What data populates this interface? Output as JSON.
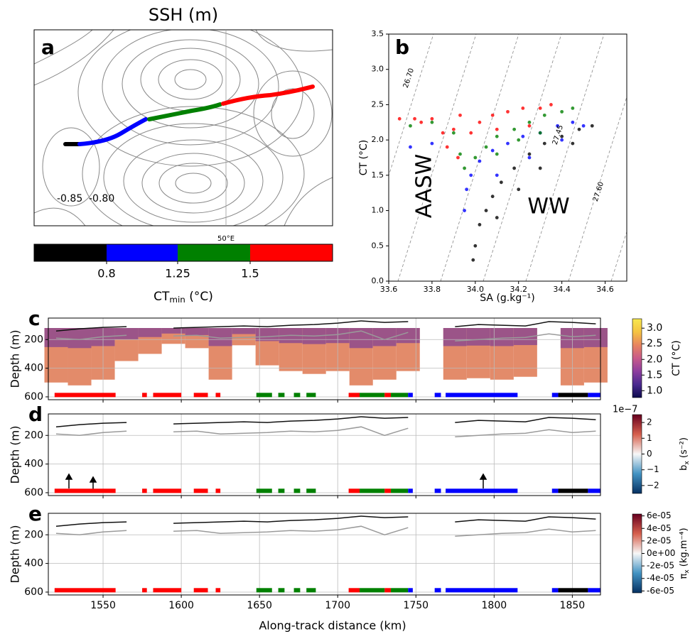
{
  "chart_data": [
    {
      "type": "map",
      "panel_label": "a",
      "title": "SSH (m)",
      "contour_labels": [
        "-0.85",
        "-0.80"
      ],
      "lon_label": "50°E"
    },
    {
      "type": "colorbar",
      "colors": [
        "#000000",
        "#0000ff",
        "#008000",
        "#ff0000"
      ],
      "ticks": [
        0.8,
        1.25,
        1.5
      ],
      "label_main": "CT",
      "label_sub": "min",
      "label_unit": " (°C)"
    },
    {
      "type": "scatter",
      "panel_label": "b",
      "xlabel": "SA (g.kg⁻¹)",
      "ylabel": "CT (°C)",
      "xlim": [
        33.6,
        34.7
      ],
      "ylim": [
        0,
        3.5
      ],
      "xticks": [
        33.6,
        33.8,
        {
          "value": 34,
          "label": "34.0"
        },
        34.2,
        34.4,
        34.6
      ],
      "yticks": [
        {
          "value": 0,
          "label": "0.0"
        },
        0.5,
        {
          "value": 1,
          "label": "1.0"
        },
        1.5,
        {
          "value": 2,
          "label": "2.0"
        },
        2.5,
        {
          "value": 3,
          "label": "3.0"
        },
        3.5
      ],
      "annotations": [
        "AASW",
        "WW"
      ],
      "isopycnal_labels": [
        "26.70",
        "27.45",
        "27.60"
      ],
      "series": [
        {
          "color": "#000000",
          "x": [
            33.99,
            34.0,
            34.02,
            34.05,
            34.08,
            34.12,
            34.18,
            34.25,
            34.32,
            34.4,
            34.48,
            34.54,
            34.1,
            34.2,
            34.3,
            34.45
          ],
          "y": [
            0.3,
            0.5,
            0.8,
            1.0,
            1.2,
            1.4,
            1.6,
            1.8,
            1.95,
            2.05,
            2.15,
            2.2,
            0.9,
            1.3,
            1.6,
            1.95
          ]
        },
        {
          "color": "#0000ff",
          "x": [
            33.95,
            33.96,
            33.98,
            34.02,
            34.08,
            34.15,
            34.22,
            34.3,
            34.38,
            34.45,
            34.5,
            33.7,
            33.8,
            34.1,
            34.25,
            34.4
          ],
          "y": [
            1.0,
            1.3,
            1.5,
            1.7,
            1.85,
            1.95,
            2.05,
            2.1,
            2.2,
            2.25,
            2.2,
            1.9,
            1.95,
            1.5,
            1.75,
            2.0
          ]
        },
        {
          "color": "#008000",
          "x": [
            33.9,
            33.93,
            33.95,
            34.0,
            34.05,
            34.1,
            34.18,
            34.25,
            34.32,
            34.4,
            34.45,
            34.1,
            34.2,
            34.3,
            33.7,
            33.8
          ],
          "y": [
            2.1,
            1.8,
            1.6,
            1.75,
            1.9,
            2.05,
            2.15,
            2.25,
            2.35,
            2.4,
            2.45,
            1.8,
            2.0,
            2.1,
            2.2,
            2.25
          ]
        },
        {
          "color": "#ff0000",
          "x": [
            33.65,
            33.72,
            33.8,
            33.85,
            33.87,
            33.9,
            33.93,
            33.98,
            34.02,
            34.08,
            34.15,
            34.22,
            34.3,
            34.35,
            34.25,
            34.1,
            33.75,
            33.92
          ],
          "y": [
            2.3,
            2.3,
            2.3,
            2.1,
            1.9,
            2.15,
            2.35,
            2.1,
            2.25,
            2.35,
            2.4,
            2.45,
            2.45,
            2.5,
            2.2,
            2.15,
            2.25,
            1.75
          ]
        }
      ]
    },
    {
      "type": "section",
      "panel_label": "c",
      "ylabel": "Depth (m)",
      "xlim": [
        1515,
        1868
      ],
      "ylim": [
        50,
        620
      ],
      "xticks": [
        1550,
        1600,
        1650,
        1700,
        1750,
        1800,
        1850
      ],
      "yticks": [
        200,
        400,
        600
      ],
      "x": [
        1520,
        1535,
        1550,
        1565,
        1580,
        1595,
        1610,
        1625,
        1640,
        1655,
        1670,
        1685,
        1700,
        1715,
        1730,
        1745,
        1760,
        1775,
        1790,
        1805,
        1820,
        1835,
        1850,
        1865
      ],
      "bottom": [
        500,
        520,
        480,
        350,
        300,
        230,
        260,
        480,
        240,
        380,
        420,
        440,
        420,
        520,
        480,
        420,
        null,
        480,
        470,
        480,
        460,
        null,
        520,
        500
      ],
      "series": [
        {
          "color": "#111111",
          "values": [
            140,
            125,
            115,
            110,
            null,
            120,
            115,
            110,
            105,
            110,
            100,
            95,
            85,
            70,
            80,
            75,
            null,
            110,
            95,
            100,
            105,
            75,
            80,
            90
          ]
        },
        {
          "color": "#9a9a9a",
          "values": [
            190,
            200,
            180,
            170,
            null,
            175,
            170,
            190,
            185,
            180,
            170,
            175,
            165,
            140,
            200,
            150,
            null,
            210,
            200,
            190,
            185,
            160,
            180,
            170
          ]
        }
      ],
      "strip": [
        {
          "x0": 1519,
          "x1": 1558,
          "color": "#ff0000"
        },
        {
          "x0": 1575,
          "x1": 1578,
          "color": "#ff0000"
        },
        {
          "x0": 1582,
          "x1": 1600,
          "color": "#ff0000"
        },
        {
          "x0": 1608,
          "x1": 1617,
          "color": "#ff0000"
        },
        {
          "x0": 1622,
          "x1": 1625,
          "color": "#ff0000"
        },
        {
          "x0": 1648,
          "x1": 1658,
          "color": "#008000"
        },
        {
          "x0": 1662,
          "x1": 1666,
          "color": "#008000"
        },
        {
          "x0": 1672,
          "x1": 1676,
          "color": "#008000"
        },
        {
          "x0": 1680,
          "x1": 1686,
          "color": "#008000"
        },
        {
          "x0": 1707,
          "x1": 1714,
          "color": "#ff0000"
        },
        {
          "x0": 1714,
          "x1": 1730,
          "color": "#008000"
        },
        {
          "x0": 1730,
          "x1": 1734,
          "color": "#ff0000"
        },
        {
          "x0": 1734,
          "x1": 1745,
          "color": "#008000"
        },
        {
          "x0": 1745,
          "x1": 1748,
          "color": "#0000ff"
        },
        {
          "x0": 1762,
          "x1": 1766,
          "color": "#0000ff"
        },
        {
          "x0": 1769,
          "x1": 1815,
          "color": "#0000ff"
        },
        {
          "x0": 1837,
          "x1": 1841,
          "color": "#0000ff"
        },
        {
          "x0": 1841,
          "x1": 1860,
          "color": "#000000"
        },
        {
          "x0": 1860,
          "x1": 1868,
          "color": "#0000ff"
        }
      ],
      "colorbar": {
        "lim": [
          0.78,
          3.3
        ],
        "ticks": [
          {
            "value": 1,
            "label": "1.0"
          },
          1.5,
          {
            "value": 2,
            "label": "2.0"
          },
          2.5,
          {
            "value": 3,
            "label": "3.0"
          }
        ],
        "colors": [
          "#0d0a4d",
          "#4a2a8f",
          "#8e3e9e",
          "#c85a8a",
          "#e8845f",
          "#f5c342",
          "#f6e84f"
        ],
        "label": "CT (°C)"
      }
    },
    {
      "type": "section",
      "panel_label": "d",
      "ylabel": "Depth (m)",
      "xlim": [
        1515,
        1868
      ],
      "ylim": [
        50,
        620
      ],
      "xticks": [
        1550,
        1600,
        1650,
        1700,
        1750,
        1800,
        1850
      ],
      "yticks": [
        200,
        400,
        600
      ],
      "x": [
        1520,
        1535,
        1550,
        1565,
        1580,
        1595,
        1610,
        1625,
        1640,
        1655,
        1670,
        1685,
        1700,
        1715,
        1730,
        1745,
        1760,
        1775,
        1790,
        1805,
        1820,
        1835,
        1850,
        1865
      ],
      "series": [
        {
          "color": "#111111",
          "values": [
            140,
            125,
            115,
            110,
            null,
            120,
            115,
            110,
            105,
            110,
            100,
            95,
            85,
            70,
            80,
            75,
            null,
            110,
            95,
            100,
            105,
            75,
            80,
            90
          ]
        },
        {
          "color": "#9a9a9a",
          "values": [
            190,
            200,
            180,
            170,
            null,
            175,
            170,
            190,
            185,
            180,
            170,
            175,
            165,
            140,
            200,
            150,
            null,
            210,
            200,
            190,
            185,
            160,
            180,
            170
          ]
        }
      ],
      "strip": [
        {
          "x0": 1519,
          "x1": 1558,
          "color": "#ff0000"
        },
        {
          "x0": 1575,
          "x1": 1578,
          "color": "#ff0000"
        },
        {
          "x0": 1582,
          "x1": 1600,
          "color": "#ff0000"
        },
        {
          "x0": 1608,
          "x1": 1617,
          "color": "#ff0000"
        },
        {
          "x0": 1622,
          "x1": 1625,
          "color": "#ff0000"
        },
        {
          "x0": 1648,
          "x1": 1658,
          "color": "#008000"
        },
        {
          "x0": 1662,
          "x1": 1666,
          "color": "#008000"
        },
        {
          "x0": 1672,
          "x1": 1676,
          "color": "#008000"
        },
        {
          "x0": 1680,
          "x1": 1686,
          "color": "#008000"
        },
        {
          "x0": 1707,
          "x1": 1714,
          "color": "#ff0000"
        },
        {
          "x0": 1714,
          "x1": 1730,
          "color": "#008000"
        },
        {
          "x0": 1730,
          "x1": 1734,
          "color": "#ff0000"
        },
        {
          "x0": 1734,
          "x1": 1745,
          "color": "#008000"
        },
        {
          "x0": 1745,
          "x1": 1748,
          "color": "#0000ff"
        },
        {
          "x0": 1762,
          "x1": 1766,
          "color": "#0000ff"
        },
        {
          "x0": 1769,
          "x1": 1815,
          "color": "#0000ff"
        },
        {
          "x0": 1837,
          "x1": 1841,
          "color": "#0000ff"
        },
        {
          "x0": 1841,
          "x1": 1860,
          "color": "#000000"
        },
        {
          "x0": 1860,
          "x1": 1868,
          "color": "#0000ff"
        }
      ],
      "colorbar": {
        "lim": [
          -2.5,
          2.5
        ],
        "offset_label": "1e−7",
        "ticks": [
          {
            "value": -2,
            "label": "−2"
          },
          {
            "value": -1,
            "label": "−1"
          },
          0,
          1,
          2
        ],
        "colors": [
          "#053061",
          "#4393c3",
          "#f7f7f7",
          "#d6604d",
          "#67001f"
        ],
        "label_main": "b",
        "label_sub": "x",
        "label_unit": " (s⁻²)"
      }
    },
    {
      "type": "section",
      "panel_label": "e",
      "ylabel": "Depth (m)",
      "xlabel": "Along-track distance (km)",
      "xlim": [
        1515,
        1868
      ],
      "ylim": [
        50,
        620
      ],
      "xticks": [
        1550,
        1600,
        1650,
        1700,
        1750,
        1800,
        1850
      ],
      "yticks": [
        200,
        400,
        600
      ],
      "x": [
        1520,
        1535,
        1550,
        1565,
        1580,
        1595,
        1610,
        1625,
        1640,
        1655,
        1670,
        1685,
        1700,
        1715,
        1730,
        1745,
        1760,
        1775,
        1790,
        1805,
        1820,
        1835,
        1850,
        1865
      ],
      "series": [
        {
          "color": "#111111",
          "values": [
            140,
            125,
            115,
            110,
            null,
            120,
            115,
            110,
            105,
            110,
            100,
            95,
            85,
            70,
            80,
            75,
            null,
            110,
            95,
            100,
            105,
            75,
            80,
            90
          ]
        },
        {
          "color": "#9a9a9a",
          "values": [
            190,
            200,
            180,
            170,
            null,
            175,
            170,
            190,
            185,
            180,
            170,
            175,
            165,
            140,
            200,
            150,
            null,
            210,
            200,
            190,
            185,
            160,
            180,
            170
          ]
        }
      ],
      "strip": [
        {
          "x0": 1519,
          "x1": 1558,
          "color": "#ff0000"
        },
        {
          "x0": 1575,
          "x1": 1578,
          "color": "#ff0000"
        },
        {
          "x0": 1582,
          "x1": 1600,
          "color": "#ff0000"
        },
        {
          "x0": 1608,
          "x1": 1617,
          "color": "#ff0000"
        },
        {
          "x0": 1622,
          "x1": 1625,
          "color": "#ff0000"
        },
        {
          "x0": 1648,
          "x1": 1658,
          "color": "#008000"
        },
        {
          "x0": 1662,
          "x1": 1666,
          "color": "#008000"
        },
        {
          "x0": 1672,
          "x1": 1676,
          "color": "#008000"
        },
        {
          "x0": 1680,
          "x1": 1686,
          "color": "#008000"
        },
        {
          "x0": 1707,
          "x1": 1714,
          "color": "#ff0000"
        },
        {
          "x0": 1714,
          "x1": 1730,
          "color": "#008000"
        },
        {
          "x0": 1730,
          "x1": 1734,
          "color": "#ff0000"
        },
        {
          "x0": 1734,
          "x1": 1745,
          "color": "#008000"
        },
        {
          "x0": 1745,
          "x1": 1748,
          "color": "#0000ff"
        },
        {
          "x0": 1762,
          "x1": 1766,
          "color": "#0000ff"
        },
        {
          "x0": 1769,
          "x1": 1815,
          "color": "#0000ff"
        },
        {
          "x0": 1837,
          "x1": 1841,
          "color": "#0000ff"
        },
        {
          "x0": 1841,
          "x1": 1860,
          "color": "#000000"
        },
        {
          "x0": 1860,
          "x1": 1868,
          "color": "#0000ff"
        }
      ],
      "colorbar": {
        "lim": [
          -6.3e-05,
          6.3e-05
        ],
        "ticks": [
          {
            "value": 6e-05,
            "label": "6e-05"
          },
          {
            "value": 4e-05,
            "label": "4e-05"
          },
          {
            "value": 2e-05,
            "label": "2e-05"
          },
          {
            "value": 0,
            "label": "0e+00"
          },
          {
            "value": -2e-05,
            "label": "-2e-05"
          },
          {
            "value": -4e-05,
            "label": "-4e-05"
          },
          {
            "value": -6e-05,
            "label": "-6e-05"
          }
        ],
        "colors": [
          "#053061",
          "#4393c3",
          "#f7f7f7",
          "#d6604d",
          "#67001f"
        ],
        "label_main": "π",
        "label_sub": "x",
        "label_unit": " (kg.m⁻⁴)"
      }
    }
  ]
}
